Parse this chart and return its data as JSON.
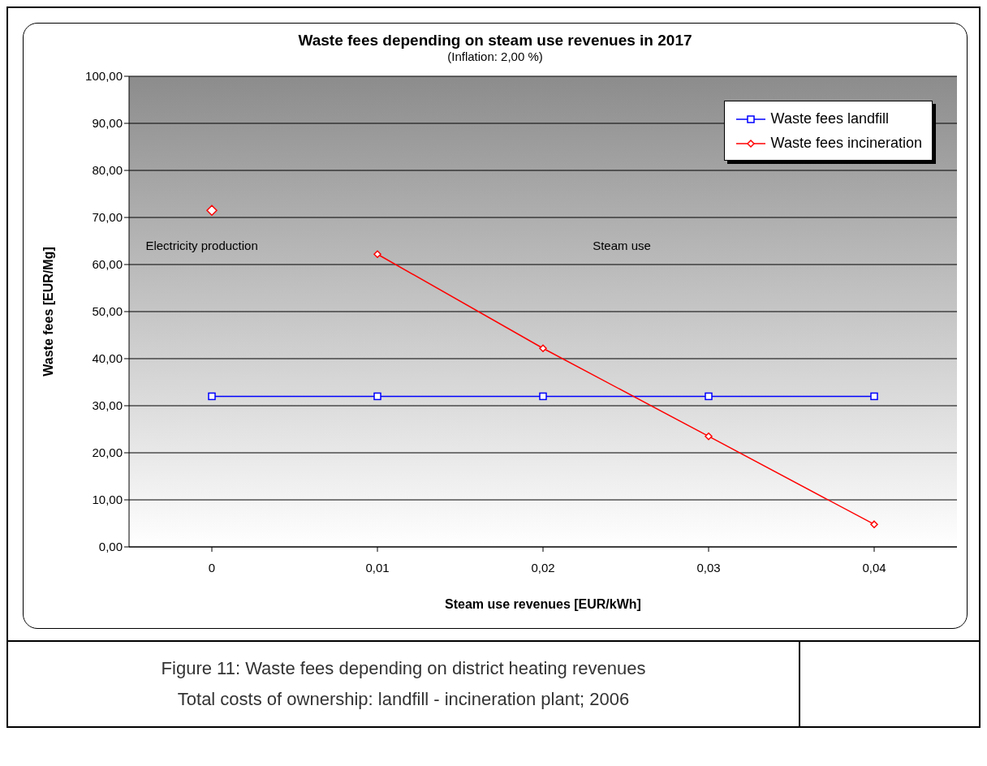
{
  "chart_data": {
    "type": "line",
    "title": "Waste fees depending on steam use revenues in 2017",
    "subtitle": "(Inflation: 2,00 %)",
    "xlabel": "Steam use revenues [EUR/kWh]",
    "ylabel": "Waste fees [EUR/Mg]",
    "categories": [
      "0",
      "0,01",
      "0,02",
      "0,03",
      "0,04"
    ],
    "series": [
      {
        "name": "Waste fees landfill",
        "color": "#0000ff",
        "marker": "square",
        "values": [
          32,
          32,
          32,
          32,
          32
        ]
      },
      {
        "name": "Waste fees incineration",
        "color": "#ff0000",
        "marker": "diamond",
        "values": [
          null,
          62.2,
          42.2,
          23.5,
          4.8
        ]
      },
      {
        "type": "scatter",
        "color": "#ff0000",
        "marker": "diamond",
        "values": [
          71.5,
          null,
          null,
          null,
          null
        ]
      }
    ],
    "ylim": [
      0,
      100
    ],
    "yticks": [
      {
        "value": 0,
        "label": "0,00"
      },
      {
        "value": 10,
        "label": "10,00"
      },
      {
        "value": 20,
        "label": "20,00"
      },
      {
        "value": 30,
        "label": "30,00"
      },
      {
        "value": 40,
        "label": "40,00"
      },
      {
        "value": 50,
        "label": "50,00"
      },
      {
        "value": 60,
        "label": "60,00"
      },
      {
        "value": 70,
        "label": "70,00"
      },
      {
        "value": 80,
        "label": "80,00"
      },
      {
        "value": 90,
        "label": "90,00"
      },
      {
        "value": 100,
        "label": "100,00"
      }
    ],
    "grid": "y",
    "legend": "top right",
    "annotations": [
      "Electricity production",
      "Steam use",
      "Figure 11: Waste fees depending on district heating revenues",
      "Total costs of ownership: landfill - incineration plant; 2006"
    ]
  }
}
